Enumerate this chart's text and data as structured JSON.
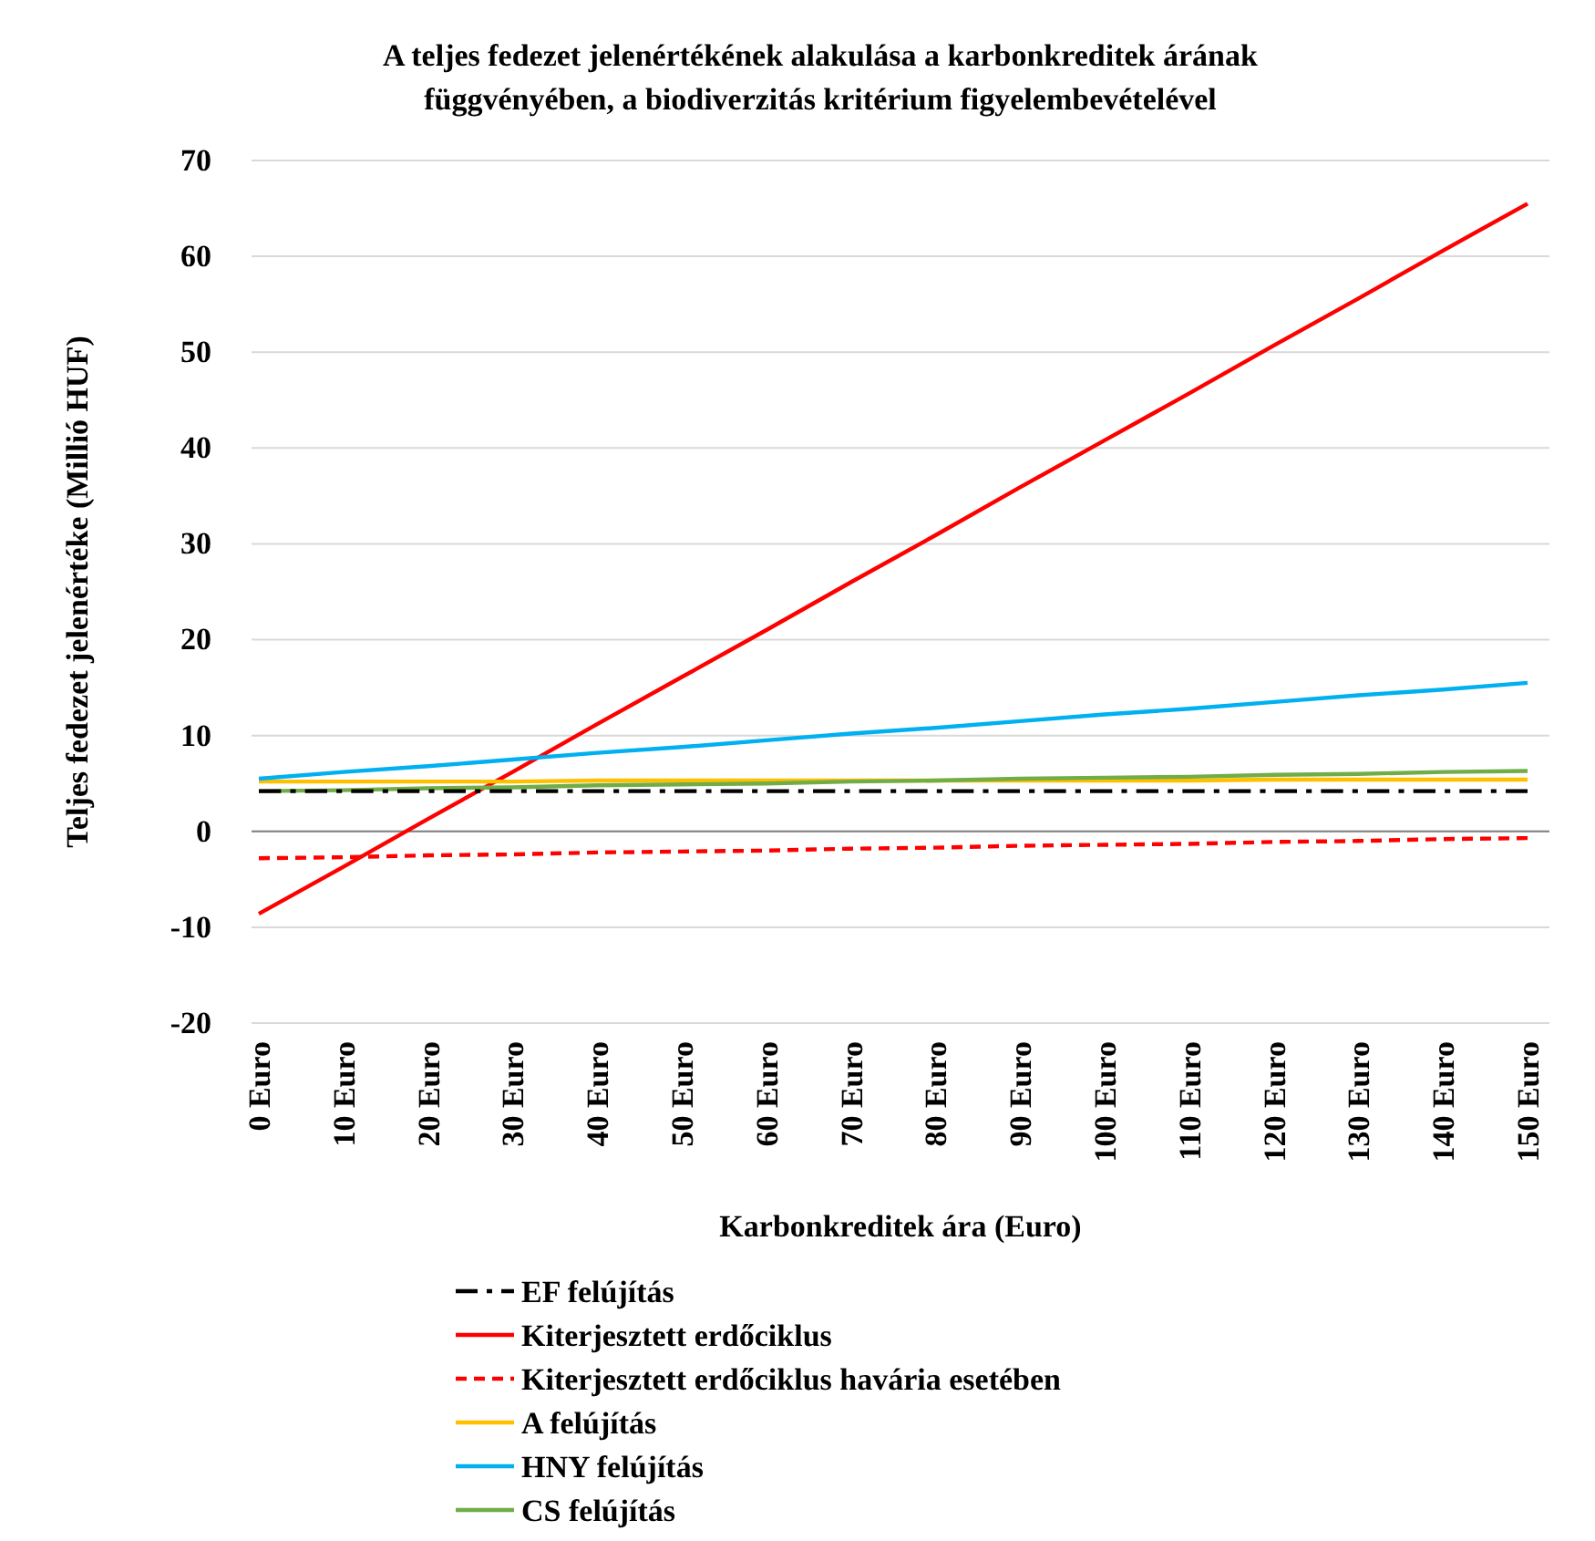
{
  "chart_data": {
    "type": "line",
    "title": "A teljes fedezet jelenértékének alakulása a karbonkreditek árának\nfüggvényében, a biodiverzitás kritérium figyelembevételével",
    "xlabel": "Karbonkreditek ára (Euro)",
    "ylabel": "Teljes fedezet jelenértéke (Millió HUF)",
    "categories": [
      "0 Euro",
      "10 Euro",
      "20 Euro",
      "30 Euro",
      "40 Euro",
      "50 Euro",
      "60 Euro",
      "70 Euro",
      "80 Euro",
      "90 Euro",
      "100 Euro",
      "110 Euro",
      "120 Euro",
      "130 Euro",
      "140 Euro",
      "150 Euro"
    ],
    "ylim": [
      -20,
      70
    ],
    "yticks": [
      -20,
      -10,
      0,
      10,
      20,
      30,
      40,
      50,
      60,
      70
    ],
    "grid": "y",
    "legend": "bottom",
    "marker": "none",
    "series": [
      {
        "name": "EF felújítás",
        "color": "#000000",
        "line_style": "dashdot",
        "values": [
          4.2,
          4.2,
          4.2,
          4.2,
          4.2,
          4.2,
          4.2,
          4.2,
          4.2,
          4.2,
          4.2,
          4.2,
          4.2,
          4.2,
          4.2,
          4.2
        ]
      },
      {
        "name": "Kiterjesztett erdőciklus",
        "color": "#ff0000",
        "line_style": "solid",
        "values": [
          -8.6,
          -3.7,
          1.3,
          6.2,
          11.2,
          16.1,
          21.0,
          26.0,
          30.9,
          35.9,
          40.8,
          45.7,
          50.7,
          55.6,
          60.6,
          65.5
        ]
      },
      {
        "name": "Kiterjesztett erdőciklus havária esetében",
        "color": "#ff0000",
        "line_style": "dashed",
        "values": [
          -2.8,
          -2.7,
          -2.5,
          -2.4,
          -2.2,
          -2.1,
          -2.0,
          -1.8,
          -1.7,
          -1.5,
          -1.4,
          -1.3,
          -1.1,
          -1.0,
          -0.8,
          -0.7
        ]
      },
      {
        "name": "A felújítás",
        "color": "#ffc000",
        "line_style": "solid",
        "values": [
          5.2,
          5.2,
          5.2,
          5.2,
          5.3,
          5.3,
          5.3,
          5.3,
          5.3,
          5.3,
          5.3,
          5.3,
          5.4,
          5.4,
          5.4,
          5.4
        ]
      },
      {
        "name": "HNY felújítás",
        "color": "#00b0f0",
        "line_style": "solid",
        "values": [
          5.5,
          6.2,
          6.8,
          7.5,
          8.2,
          8.8,
          9.5,
          10.2,
          10.8,
          11.5,
          12.2,
          12.8,
          13.5,
          14.2,
          14.8,
          15.5
        ]
      },
      {
        "name": "CS felújítás",
        "color": "#70ad47",
        "line_style": "solid",
        "values": [
          4.2,
          4.3,
          4.5,
          4.6,
          4.8,
          4.9,
          5.0,
          5.2,
          5.3,
          5.5,
          5.6,
          5.7,
          5.9,
          6.0,
          6.2,
          6.3
        ]
      }
    ]
  }
}
